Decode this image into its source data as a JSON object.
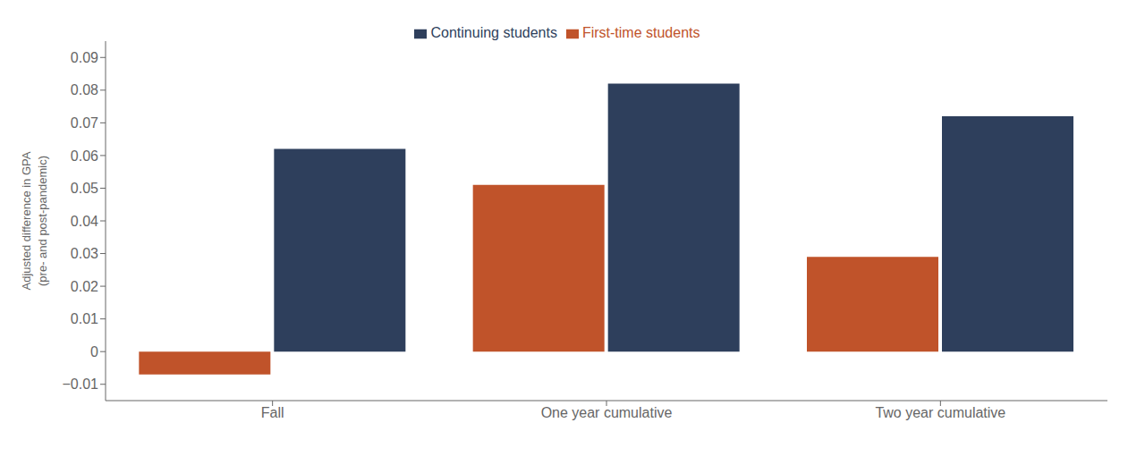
{
  "chart_data": {
    "type": "bar",
    "categories": [
      "Fall",
      "One year cumulative",
      "Two year cumulative"
    ],
    "series": [
      {
        "name": "First-time students",
        "color": "#C0532A",
        "values": [
          -0.007,
          0.051,
          0.029
        ]
      },
      {
        "name": "Continuing students",
        "color": "#2E3F5C",
        "values": [
          0.062,
          0.082,
          0.072
        ]
      }
    ],
    "ylabel": "Adjusted difference in GPA\n(pre- and post-pandemic)",
    "ylim": [
      -0.015,
      0.095
    ],
    "yticks": [
      {
        "value": -0.01,
        "label": "−0.01"
      },
      0,
      0.01,
      0.02,
      0.03,
      0.04,
      0.05,
      0.06,
      0.07,
      0.08,
      0.09
    ],
    "grid": false,
    "legend": "top"
  }
}
